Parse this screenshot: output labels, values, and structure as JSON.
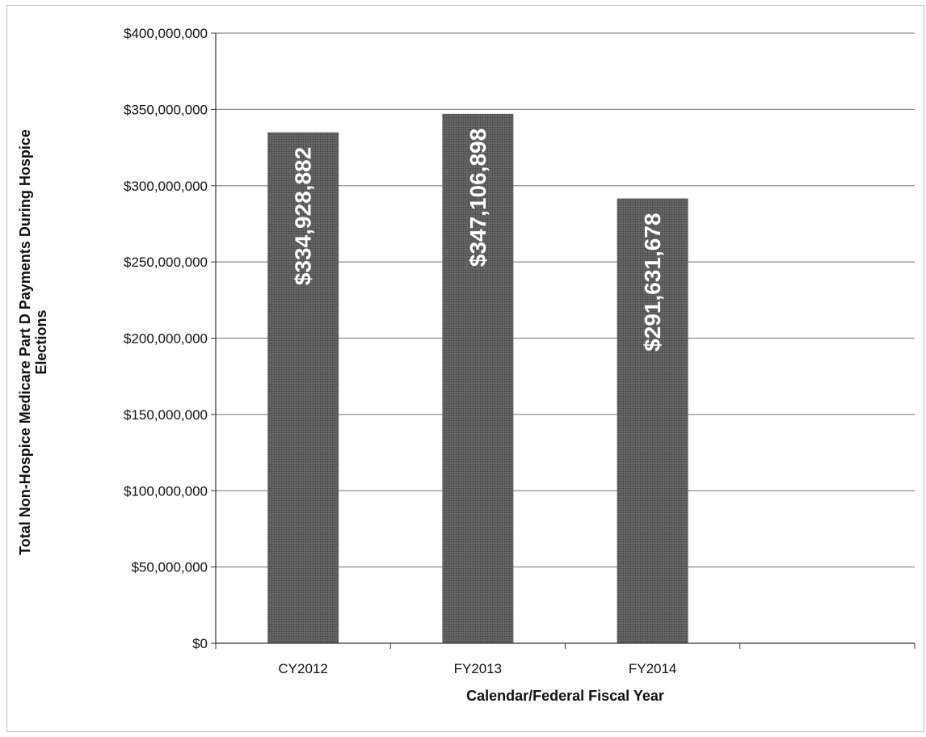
{
  "chart_data": {
    "type": "bar",
    "categories": [
      "CY2012",
      "FY2013",
      "FY2014"
    ],
    "values": [
      334928882,
      347106898,
      291631678
    ],
    "data_labels": [
      "$334,928,882",
      "$347,106,898",
      "$291,631,678"
    ],
    "title": "",
    "xlabel": "Calendar/Federal Fiscal Year",
    "ylabel": "Total Non-Hospice Medicare Part D Payments During Hospice Elections",
    "ylim": [
      0,
      400000000
    ],
    "y_ticks": [
      {
        "value": 0,
        "label": "$0"
      },
      {
        "value": 50000000,
        "label": "$50,000,000"
      },
      {
        "value": 100000000,
        "label": "$100,000,000"
      },
      {
        "value": 150000000,
        "label": "$150,000,000"
      },
      {
        "value": 200000000,
        "label": "$200,000,000"
      },
      {
        "value": 250000000,
        "label": "$250,000,000"
      },
      {
        "value": 300000000,
        "label": "$300,000,000"
      },
      {
        "value": 350000000,
        "label": "$350,000,000"
      },
      {
        "value": 400000000,
        "label": "$400,000,000"
      }
    ],
    "category_slots": 4,
    "grid": true,
    "legend": "none",
    "bar_color": "#5a5a5a",
    "label_color": "#ffffff"
  }
}
